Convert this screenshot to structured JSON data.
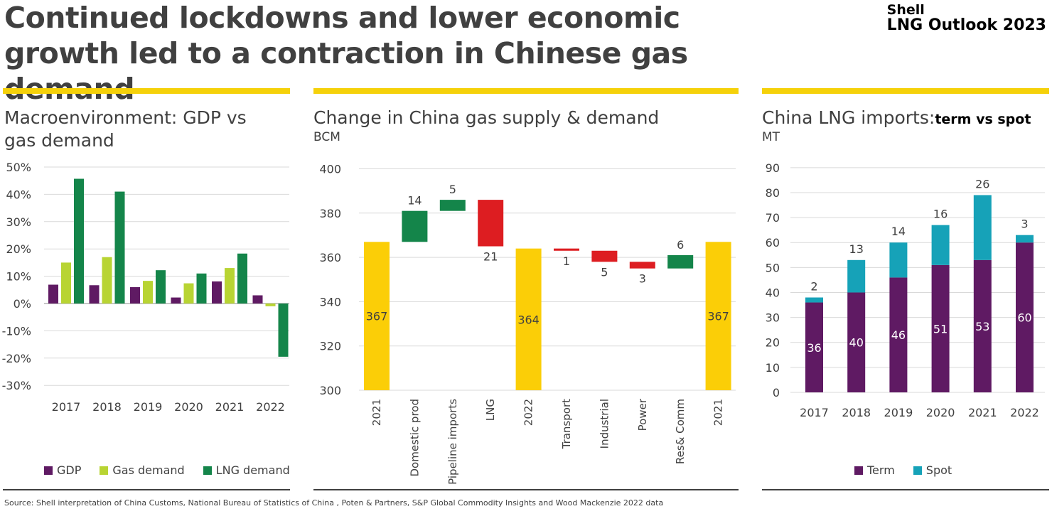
{
  "main_title": "Continued lockdowns and lower economic growth led to a contraction in Chinese gas demand",
  "brand": {
    "line1": "Shell",
    "line2": "LNG Outlook 2023"
  },
  "source": "Source: Shell interpretation of China Customs, National Bureau of Statistics of China , Poten & Partners, S&P Global Commodity Insights and Wood Mackenzie 2022 data",
  "colors": {
    "accent_yellow": "#f5d10a",
    "purple": "#5f1a63",
    "lime": "#b8d433",
    "green": "#14854a",
    "red": "#dd1d21",
    "gold": "#fbce07",
    "teal": "#16a2b8"
  },
  "panels": {
    "macro": {
      "title": "Macroenvironment: GDP vs gas demand"
    },
    "supply": {
      "title": "Change in China gas supply & demand",
      "unit": "BCM"
    },
    "imports": {
      "title": "China LNG imports:",
      "title_suffix": "term vs spot",
      "unit": "MT"
    }
  },
  "chart_data": [
    {
      "type": "bar",
      "title": "Macroenvironment: GDP vs gas demand",
      "categories": [
        "2017",
        "2018",
        "2019",
        "2020",
        "2021",
        "2022"
      ],
      "series": [
        {
          "name": "GDP",
          "color": "#5f1a63",
          "values": [
            6.9,
            6.7,
            6.0,
            2.2,
            8.1,
            3.0
          ]
        },
        {
          "name": "Gas demand",
          "color": "#b8d433",
          "values": [
            15.0,
            17.0,
            8.3,
            7.4,
            13.0,
            -1.0
          ]
        },
        {
          "name": "LNG demand",
          "color": "#14854a",
          "values": [
            45.7,
            41.0,
            12.2,
            11.0,
            18.3,
            -19.5
          ]
        }
      ],
      "ylim": [
        -30,
        50
      ],
      "yticks": [
        "50%",
        "40%",
        "30%",
        "20%",
        "10%",
        "0%",
        "-10%",
        "-20%",
        "-30%"
      ],
      "legend_position": "bottom"
    },
    {
      "type": "waterfall",
      "title": "Change in China gas supply & demand",
      "ylabel": "BCM",
      "ylim": [
        300,
        400
      ],
      "yticks": [
        "400",
        "380",
        "360",
        "340",
        "320",
        "300"
      ],
      "steps": [
        {
          "label": "2021",
          "kind": "total",
          "value": 367,
          "text": "367"
        },
        {
          "label": "Domestic prod",
          "kind": "increase",
          "value": 14,
          "text": "14"
        },
        {
          "label": "Pipeline imports",
          "kind": "increase",
          "value": 5,
          "text": "5"
        },
        {
          "label": "LNG",
          "kind": "decrease",
          "value": -21,
          "text": "21"
        },
        {
          "label": "2022",
          "kind": "total",
          "value": 364,
          "text": "364"
        },
        {
          "label": "Transport",
          "kind": "decrease",
          "value": -1,
          "text": "1"
        },
        {
          "label": "Industrial",
          "kind": "decrease",
          "value": -5,
          "text": "5"
        },
        {
          "label": "Power",
          "kind": "decrease",
          "value": -3,
          "text": "3"
        },
        {
          "label": "Res& Comm",
          "kind": "increase",
          "value": 6,
          "text": "6"
        },
        {
          "label": "2021",
          "kind": "total",
          "value": 367,
          "text": "367"
        }
      ]
    },
    {
      "type": "stacked-bar",
      "title": "China LNG imports: term vs spot",
      "ylabel": "MT",
      "categories": [
        "2017",
        "2018",
        "2019",
        "2020",
        "2021",
        "2022"
      ],
      "series": [
        {
          "name": "Term",
          "color": "#5f1a63",
          "values": [
            36,
            40,
            46,
            51,
            53,
            60
          ]
        },
        {
          "name": "Spot",
          "color": "#16a2b8",
          "values": [
            2,
            13,
            14,
            16,
            26,
            3
          ]
        }
      ],
      "ylim": [
        0,
        90
      ],
      "yticks": [
        "90",
        "80",
        "70",
        "60",
        "50",
        "40",
        "30",
        "20",
        "10",
        "0"
      ],
      "legend_position": "bottom"
    }
  ]
}
